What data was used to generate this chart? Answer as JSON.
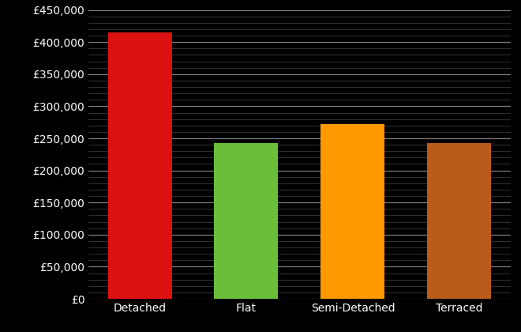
{
  "categories": [
    "Detached",
    "Flat",
    "Semi-Detached",
    "Terraced"
  ],
  "values": [
    415000,
    242000,
    272000,
    243000
  ],
  "bar_colors": [
    "#dd1111",
    "#6abf3a",
    "#ff9900",
    "#b85c1a"
  ],
  "background_color": "#000000",
  "text_color": "#ffffff",
  "major_grid_color": "#888888",
  "minor_grid_color": "#444444",
  "ylim": [
    0,
    450000
  ],
  "ytick_step": 50000,
  "tick_fontsize": 10,
  "bar_width": 0.6
}
